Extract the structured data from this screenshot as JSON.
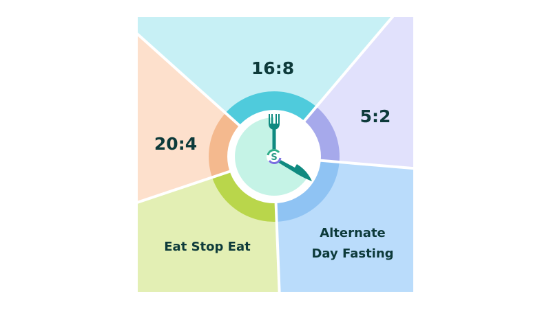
{
  "sectors": [
    {
      "label": "16:8",
      "bg": "#c7f0f5",
      "ring": "#4fcbdc"
    },
    {
      "label": "5:2",
      "bg": "#e1e1fc",
      "ring": "#a6a9eb"
    },
    {
      "label_lines": [
        "Alternate",
        "Day Fasting"
      ],
      "bg": "#badcfb",
      "ring": "#8fc3f3"
    },
    {
      "label": "Eat Stop Eat",
      "bg": "#e3efb4",
      "ring": "#b9d64b"
    },
    {
      "label": "20:4",
      "bg": "#fde0cc",
      "ring": "#f4b98e"
    }
  ],
  "clock": {
    "fasting_fill": "#c5f3e6",
    "hands_color": "#0f8a80",
    "logo_letter": "S",
    "fork_icon": "fork-icon",
    "knife_icon": "knife-icon"
  },
  "text_color": "#0d3a3a"
}
